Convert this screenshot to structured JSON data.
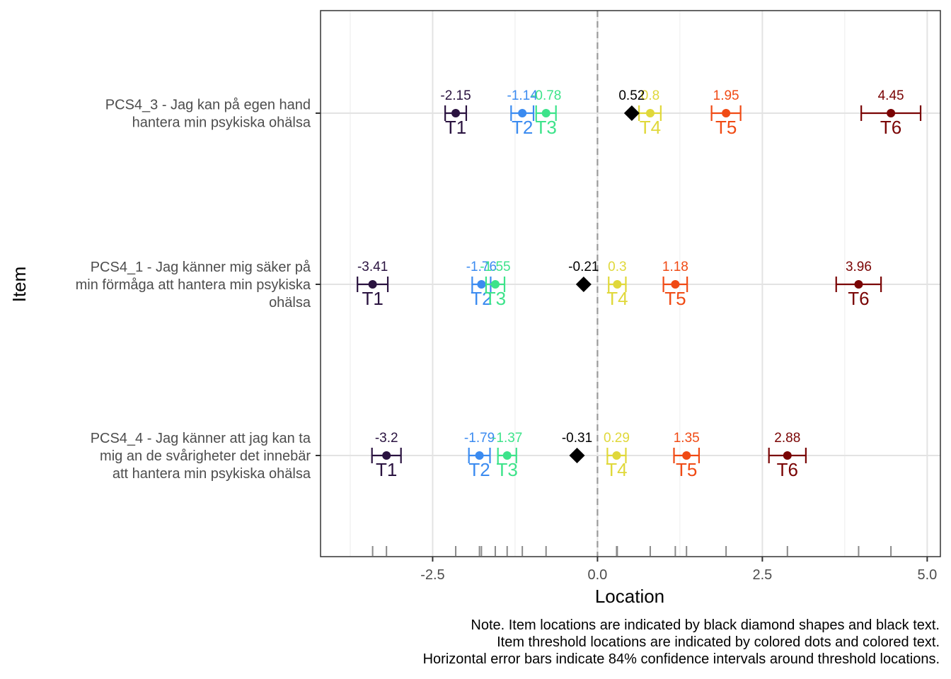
{
  "chart_data": {
    "type": "scatter",
    "xlabel": "Location",
    "ylabel": "Item",
    "xlim": [
      -4.2,
      5.2
    ],
    "x_ticks": [
      -2.5,
      0.0,
      2.5,
      5.0
    ],
    "x_tick_labels": [
      "-2.5",
      "0.0",
      "2.5",
      "5.0"
    ],
    "grid": true,
    "reference_line_x": 0,
    "threshold_colors": {
      "T1": "#2a1340",
      "T2": "#3b8bf0",
      "T3": "#3de38a",
      "T4": "#e0d83a",
      "T5": "#f04a14",
      "T6": "#7a0404"
    },
    "item_marker_color": "#000000",
    "items": [
      {
        "label_lines": [
          "PCS4_3 - Jag kan på egen hand",
          "hantera min psykiska ohälsa"
        ],
        "location": 0.52,
        "location_label": "0.52",
        "thresholds": [
          {
            "name": "T1",
            "value": -2.15,
            "value_label": "-2.15",
            "ci_low": -2.31,
            "ci_high": -1.99
          },
          {
            "name": "T2",
            "value": -1.14,
            "value_label": "-1.14",
            "ci_low": -1.31,
            "ci_high": -0.97
          },
          {
            "name": "T3",
            "value": -0.78,
            "value_label": "-0.78",
            "ci_low": -0.93,
            "ci_high": -0.63
          },
          {
            "name": "T4",
            "value": 0.8,
            "value_label": "0.8",
            "ci_low": 0.63,
            "ci_high": 0.96
          },
          {
            "name": "T5",
            "value": 1.95,
            "value_label": "1.95",
            "ci_low": 1.73,
            "ci_high": 2.17
          },
          {
            "name": "T6",
            "value": 4.45,
            "value_label": "4.45",
            "ci_low": 4.0,
            "ci_high": 4.9
          }
        ]
      },
      {
        "label_lines": [
          "PCS4_1 - Jag känner mig säker på",
          "min förmåga att hantera min psykiska",
          "ohälsa"
        ],
        "location": -0.21,
        "location_label": "-0.21",
        "thresholds": [
          {
            "name": "T1",
            "value": -3.41,
            "value_label": "-3.41",
            "ci_low": -3.64,
            "ci_high": -3.18
          },
          {
            "name": "T2",
            "value": -1.76,
            "value_label": "-1.76",
            "ci_low": -1.9,
            "ci_high": -1.62
          },
          {
            "name": "T3",
            "value": -1.55,
            "value_label": "-1.55",
            "ci_low": -1.69,
            "ci_high": -1.41
          },
          {
            "name": "T4",
            "value": 0.3,
            "value_label": "0.3",
            "ci_low": 0.17,
            "ci_high": 0.43
          },
          {
            "name": "T5",
            "value": 1.18,
            "value_label": "1.18",
            "ci_low": 1.0,
            "ci_high": 1.36
          },
          {
            "name": "T6",
            "value": 3.96,
            "value_label": "3.96",
            "ci_low": 3.62,
            "ci_high": 4.3
          }
        ]
      },
      {
        "label_lines": [
          "PCS4_4 - Jag känner att jag kan ta",
          "mig an de svårigheter det innebär",
          "att hantera min psykiska ohälsa"
        ],
        "location": -0.31,
        "location_label": "-0.31",
        "thresholds": [
          {
            "name": "T1",
            "value": -3.2,
            "value_label": "-3.2",
            "ci_low": -3.42,
            "ci_high": -2.98
          },
          {
            "name": "T2",
            "value": -1.79,
            "value_label": "-1.79",
            "ci_low": -1.95,
            "ci_high": -1.63
          },
          {
            "name": "T3",
            "value": -1.37,
            "value_label": "-1.37",
            "ci_low": -1.51,
            "ci_high": -1.23
          },
          {
            "name": "T4",
            "value": 0.29,
            "value_label": "0.29",
            "ci_low": 0.15,
            "ci_high": 0.43
          },
          {
            "name": "T5",
            "value": 1.35,
            "value_label": "1.35",
            "ci_low": 1.16,
            "ci_high": 1.54
          },
          {
            "name": "T6",
            "value": 2.88,
            "value_label": "2.88",
            "ci_low": 2.6,
            "ci_high": 3.16
          }
        ]
      }
    ]
  },
  "note": {
    "line1": "Note. Item locations are indicated by black diamond shapes and black text.",
    "line2": "Item threshold locations are indicated by colored dots and colored text.",
    "line3": "Horizontal error bars indicate 84% confidence intervals around threshold locations."
  }
}
